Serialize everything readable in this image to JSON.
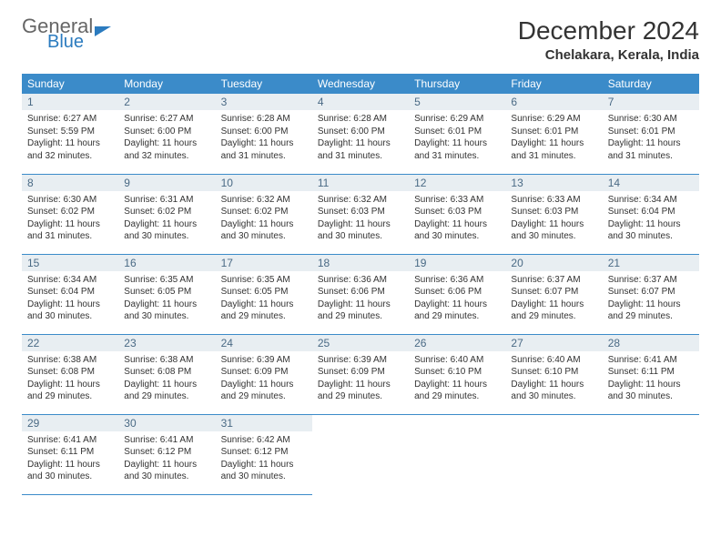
{
  "brand": {
    "word1": "General",
    "word2": "Blue"
  },
  "title": "December 2024",
  "location": "Chelakara, Kerala, India",
  "colors": {
    "header_bg": "#3b8bc9",
    "header_text": "#ffffff",
    "daynum_bg": "#e8eef2",
    "daynum_text": "#4a6a85",
    "row_border": "#3b8bc9",
    "brand_accent": "#2b7bbf"
  },
  "weekdays": [
    "Sunday",
    "Monday",
    "Tuesday",
    "Wednesday",
    "Thursday",
    "Friday",
    "Saturday"
  ],
  "weeks": [
    [
      {
        "n": "1",
        "sr": "6:27 AM",
        "ss": "5:59 PM",
        "dl": "11 hours and 32 minutes."
      },
      {
        "n": "2",
        "sr": "6:27 AM",
        "ss": "6:00 PM",
        "dl": "11 hours and 32 minutes."
      },
      {
        "n": "3",
        "sr": "6:28 AM",
        "ss": "6:00 PM",
        "dl": "11 hours and 31 minutes."
      },
      {
        "n": "4",
        "sr": "6:28 AM",
        "ss": "6:00 PM",
        "dl": "11 hours and 31 minutes."
      },
      {
        "n": "5",
        "sr": "6:29 AM",
        "ss": "6:01 PM",
        "dl": "11 hours and 31 minutes."
      },
      {
        "n": "6",
        "sr": "6:29 AM",
        "ss": "6:01 PM",
        "dl": "11 hours and 31 minutes."
      },
      {
        "n": "7",
        "sr": "6:30 AM",
        "ss": "6:01 PM",
        "dl": "11 hours and 31 minutes."
      }
    ],
    [
      {
        "n": "8",
        "sr": "6:30 AM",
        "ss": "6:02 PM",
        "dl": "11 hours and 31 minutes."
      },
      {
        "n": "9",
        "sr": "6:31 AM",
        "ss": "6:02 PM",
        "dl": "11 hours and 30 minutes."
      },
      {
        "n": "10",
        "sr": "6:32 AM",
        "ss": "6:02 PM",
        "dl": "11 hours and 30 minutes."
      },
      {
        "n": "11",
        "sr": "6:32 AM",
        "ss": "6:03 PM",
        "dl": "11 hours and 30 minutes."
      },
      {
        "n": "12",
        "sr": "6:33 AM",
        "ss": "6:03 PM",
        "dl": "11 hours and 30 minutes."
      },
      {
        "n": "13",
        "sr": "6:33 AM",
        "ss": "6:03 PM",
        "dl": "11 hours and 30 minutes."
      },
      {
        "n": "14",
        "sr": "6:34 AM",
        "ss": "6:04 PM",
        "dl": "11 hours and 30 minutes."
      }
    ],
    [
      {
        "n": "15",
        "sr": "6:34 AM",
        "ss": "6:04 PM",
        "dl": "11 hours and 30 minutes."
      },
      {
        "n": "16",
        "sr": "6:35 AM",
        "ss": "6:05 PM",
        "dl": "11 hours and 30 minutes."
      },
      {
        "n": "17",
        "sr": "6:35 AM",
        "ss": "6:05 PM",
        "dl": "11 hours and 29 minutes."
      },
      {
        "n": "18",
        "sr": "6:36 AM",
        "ss": "6:06 PM",
        "dl": "11 hours and 29 minutes."
      },
      {
        "n": "19",
        "sr": "6:36 AM",
        "ss": "6:06 PM",
        "dl": "11 hours and 29 minutes."
      },
      {
        "n": "20",
        "sr": "6:37 AM",
        "ss": "6:07 PM",
        "dl": "11 hours and 29 minutes."
      },
      {
        "n": "21",
        "sr": "6:37 AM",
        "ss": "6:07 PM",
        "dl": "11 hours and 29 minutes."
      }
    ],
    [
      {
        "n": "22",
        "sr": "6:38 AM",
        "ss": "6:08 PM",
        "dl": "11 hours and 29 minutes."
      },
      {
        "n": "23",
        "sr": "6:38 AM",
        "ss": "6:08 PM",
        "dl": "11 hours and 29 minutes."
      },
      {
        "n": "24",
        "sr": "6:39 AM",
        "ss": "6:09 PM",
        "dl": "11 hours and 29 minutes."
      },
      {
        "n": "25",
        "sr": "6:39 AM",
        "ss": "6:09 PM",
        "dl": "11 hours and 29 minutes."
      },
      {
        "n": "26",
        "sr": "6:40 AM",
        "ss": "6:10 PM",
        "dl": "11 hours and 29 minutes."
      },
      {
        "n": "27",
        "sr": "6:40 AM",
        "ss": "6:10 PM",
        "dl": "11 hours and 30 minutes."
      },
      {
        "n": "28",
        "sr": "6:41 AM",
        "ss": "6:11 PM",
        "dl": "11 hours and 30 minutes."
      }
    ],
    [
      {
        "n": "29",
        "sr": "6:41 AM",
        "ss": "6:11 PM",
        "dl": "11 hours and 30 minutes."
      },
      {
        "n": "30",
        "sr": "6:41 AM",
        "ss": "6:12 PM",
        "dl": "11 hours and 30 minutes."
      },
      {
        "n": "31",
        "sr": "6:42 AM",
        "ss": "6:12 PM",
        "dl": "11 hours and 30 minutes."
      },
      null,
      null,
      null,
      null
    ]
  ],
  "labels": {
    "sunrise": "Sunrise:",
    "sunset": "Sunset:",
    "daylight": "Daylight:"
  }
}
